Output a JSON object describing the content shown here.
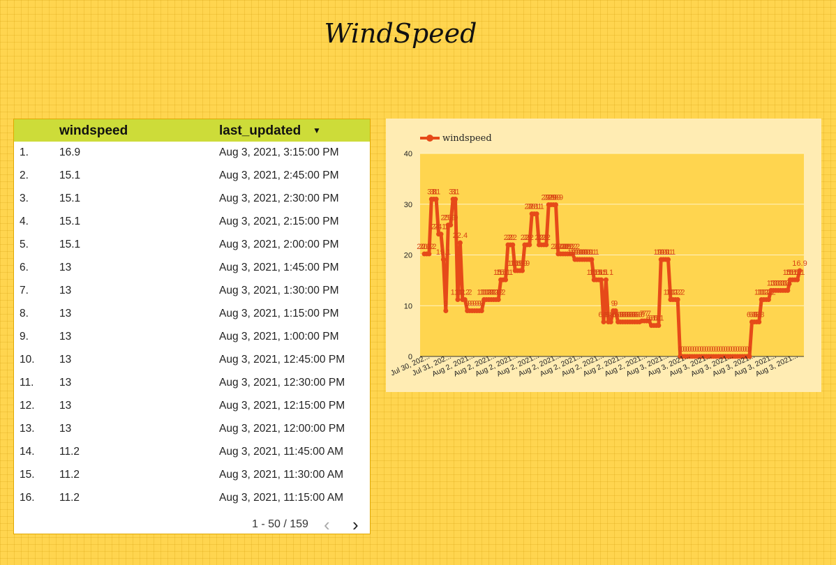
{
  "page": {
    "title": "WindSpeed"
  },
  "table": {
    "columns": [
      "windspeed",
      "last_updated"
    ],
    "sort_icon": "caret-down-icon",
    "rows": [
      {
        "idx": "1.",
        "windspeed": "16.9",
        "last_updated": "Aug 3, 2021, 3:15:00 PM"
      },
      {
        "idx": "2.",
        "windspeed": "15.1",
        "last_updated": "Aug 3, 2021, 2:45:00 PM"
      },
      {
        "idx": "3.",
        "windspeed": "15.1",
        "last_updated": "Aug 3, 2021, 2:30:00 PM"
      },
      {
        "idx": "4.",
        "windspeed": "15.1",
        "last_updated": "Aug 3, 2021, 2:15:00 PM"
      },
      {
        "idx": "5.",
        "windspeed": "15.1",
        "last_updated": "Aug 3, 2021, 2:00:00 PM"
      },
      {
        "idx": "6.",
        "windspeed": "13",
        "last_updated": "Aug 3, 2021, 1:45:00 PM"
      },
      {
        "idx": "7.",
        "windspeed": "13",
        "last_updated": "Aug 3, 2021, 1:30:00 PM"
      },
      {
        "idx": "8.",
        "windspeed": "13",
        "last_updated": "Aug 3, 2021, 1:15:00 PM"
      },
      {
        "idx": "9.",
        "windspeed": "13",
        "last_updated": "Aug 3, 2021, 1:00:00 PM"
      },
      {
        "idx": "10.",
        "windspeed": "13",
        "last_updated": "Aug 3, 2021, 12:45:00 PM"
      },
      {
        "idx": "11.",
        "windspeed": "13",
        "last_updated": "Aug 3, 2021, 12:30:00 PM"
      },
      {
        "idx": "12.",
        "windspeed": "13",
        "last_updated": "Aug 3, 2021, 12:15:00 PM"
      },
      {
        "idx": "13.",
        "windspeed": "13",
        "last_updated": "Aug 3, 2021, 12:00:00 PM"
      },
      {
        "idx": "14.",
        "windspeed": "11.2",
        "last_updated": "Aug 3, 2021, 11:45:00 AM"
      },
      {
        "idx": "15.",
        "windspeed": "11.2",
        "last_updated": "Aug 3, 2021, 11:30:00 AM"
      },
      {
        "idx": "16.",
        "windspeed": "11.2",
        "last_updated": "Aug 3, 2021, 11:15:00 AM"
      }
    ],
    "pagination": {
      "range": "1 - 50 / 159",
      "prev_icon": "chevron-left-icon",
      "next_icon": "chevron-right-icon"
    }
  },
  "colors": {
    "series": "#e64a19",
    "label": "#d84315",
    "plot_bg": "#ffd54f",
    "panel_bg": "#ffecb3",
    "header_bg": "#cddc39"
  },
  "chart_data": {
    "type": "line",
    "legend": {
      "position": "top-left",
      "entries": [
        "windspeed"
      ]
    },
    "ylim": [
      0,
      40
    ],
    "y_ticks": [
      0,
      10,
      20,
      30,
      40
    ],
    "grid": true,
    "x_tick_labels": [
      "Jul 30, 202...",
      "Jul 31, 202...",
      "Aug 2, 2021...",
      "Aug 2, 2021...",
      "Aug 2, 2021...",
      "Aug 2, 2021...",
      "Aug 2, 2021...",
      "Aug 2, 2021...",
      "Aug 2, 2021...",
      "Aug 2, 2021...",
      "Aug 2, 2021...",
      "Aug 3, 2021...",
      "Aug 3, 2021...",
      "Aug 3, 2021...",
      "Aug 3, 2021...",
      "Aug 3, 2021...",
      "Aug 3, 2021...",
      "Aug 3, 2021..."
    ],
    "series": [
      {
        "name": "windspeed",
        "values": [
          20.2,
          20.2,
          20.2,
          31,
          31,
          31,
          24.1,
          24.1,
          19.1,
          9,
          25.9,
          25.9,
          31,
          31,
          11.2,
          22.4,
          11.2,
          11.2,
          9,
          9,
          9,
          9,
          9,
          9,
          9,
          11.2,
          11.2,
          11.2,
          11.2,
          11.2,
          11.2,
          11.2,
          15.1,
          15.1,
          15.1,
          22,
          22,
          22,
          16.9,
          16.9,
          16.9,
          16.9,
          22,
          22,
          22,
          28.1,
          28.1,
          28.1,
          22,
          22,
          22,
          22,
          29.9,
          29.9,
          29.9,
          29.9,
          20.2,
          20.2,
          20.2,
          20.2,
          20.2,
          20.2,
          20.2,
          19.1,
          19.1,
          19.1,
          19.1,
          19.1,
          19.1,
          19.1,
          19.1,
          15.1,
          15.1,
          15.1,
          15.1,
          6.8,
          15.1,
          6.8,
          6.8,
          9,
          9,
          6.8,
          6.8,
          6.8,
          6.8,
          6.8,
          6.8,
          6.8,
          6.8,
          6.8,
          6.8,
          7,
          7,
          7,
          7,
          6.1,
          6.1,
          6.1,
          6.1,
          19.1,
          19.1,
          19.1,
          19.1,
          11.2,
          11.2,
          11.2,
          11.2,
          0,
          0,
          0,
          0,
          0,
          0,
          0,
          0,
          0,
          0,
          0,
          0,
          0,
          0,
          0,
          0,
          0,
          0,
          0,
          0,
          0,
          0,
          0,
          0,
          0,
          0,
          0,
          0,
          0,
          0,
          6.8,
          6.8,
          6.8,
          6.8,
          11.2,
          11.2,
          11.2,
          11.2,
          13,
          13,
          13,
          13,
          13,
          13,
          13,
          13,
          15.1,
          15.1,
          15.1,
          15.1,
          16.9
        ]
      }
    ]
  }
}
